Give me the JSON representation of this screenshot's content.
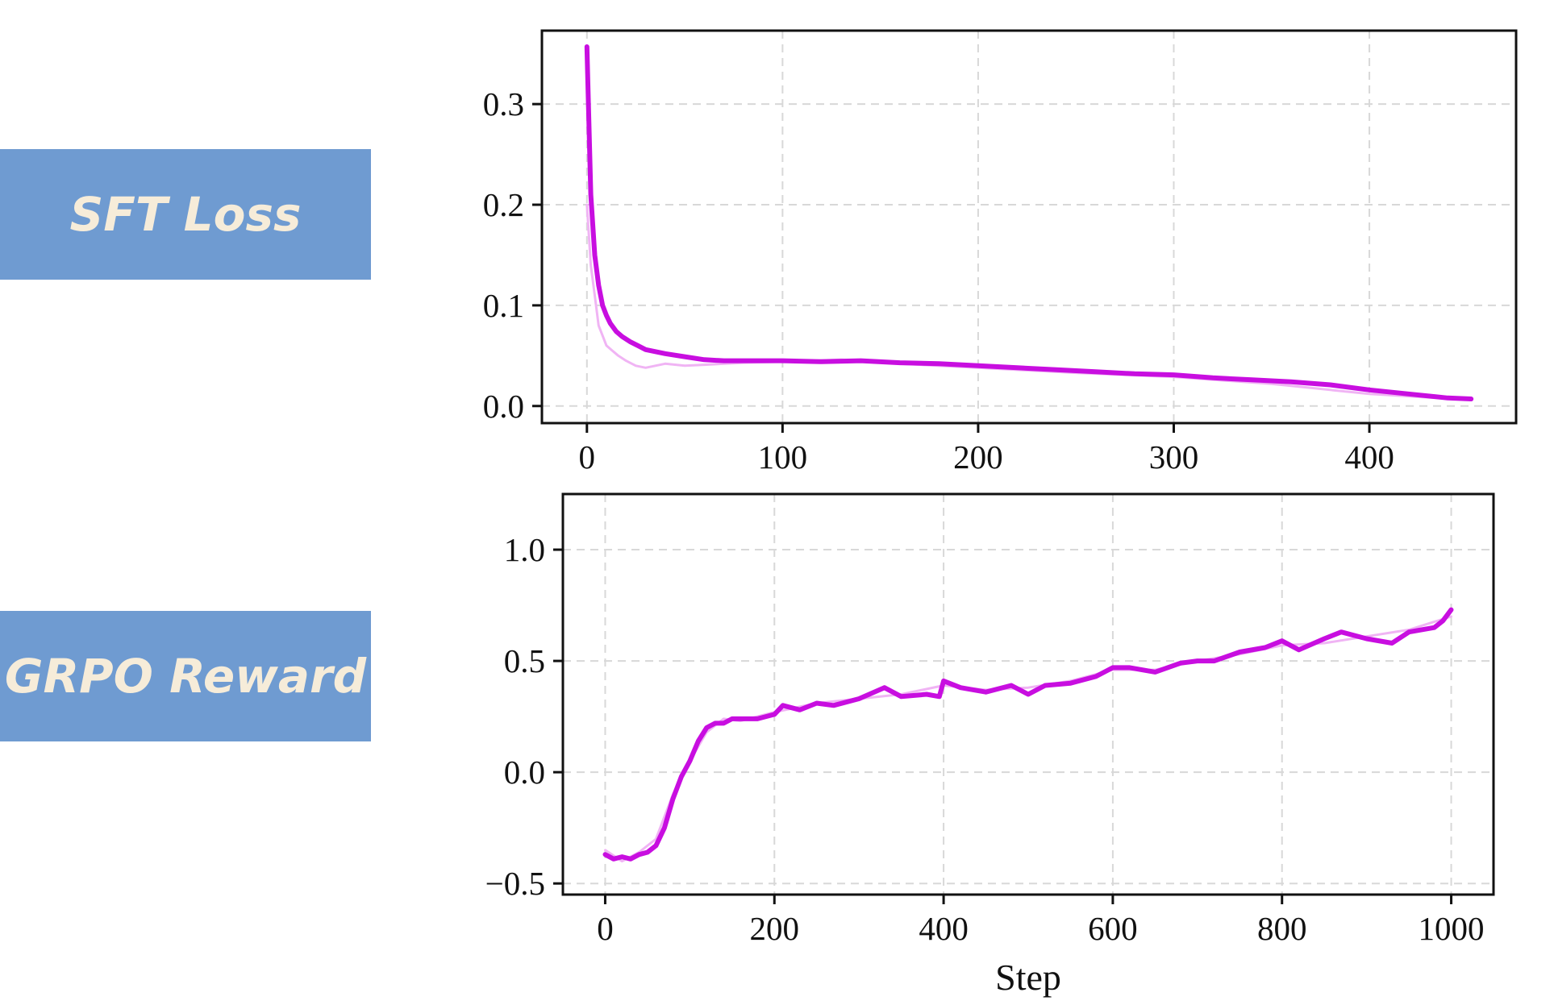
{
  "panels": {
    "sft_label": "SFT Loss",
    "grpo_label": "GRPO Reward"
  },
  "colors": {
    "panel_bg": "#6f9bd1",
    "panel_text": "#f6ecd9",
    "line": "#c80ee0",
    "raw_line": "#f0b4f4",
    "grid": "#d8d8d8"
  },
  "chart_data": [
    {
      "type": "line",
      "title": "",
      "xlabel": "",
      "ylabel": "",
      "xlim": [
        -23,
        475
      ],
      "ylim": [
        -0.017,
        0.373
      ],
      "x_ticks": [
        0,
        100,
        200,
        300,
        400
      ],
      "y_ticks": [
        0.0,
        0.1,
        0.2,
        0.3
      ],
      "y_tick_labels": [
        "0.0",
        "0.1",
        "0.2",
        "0.3"
      ],
      "grid": true,
      "series": [
        {
          "style": "smoothed",
          "x": [
            0,
            2,
            4,
            6,
            8,
            10,
            12,
            15,
            18,
            22,
            26,
            30,
            35,
            40,
            50,
            60,
            70,
            80,
            100,
            120,
            140,
            160,
            180,
            200,
            220,
            240,
            260,
            280,
            300,
            320,
            340,
            360,
            380,
            400,
            420,
            440,
            452
          ],
          "y": [
            0.357,
            0.21,
            0.15,
            0.12,
            0.1,
            0.09,
            0.082,
            0.074,
            0.069,
            0.064,
            0.06,
            0.056,
            0.054,
            0.052,
            0.049,
            0.046,
            0.045,
            0.045,
            0.045,
            0.044,
            0.045,
            0.043,
            0.042,
            0.04,
            0.038,
            0.036,
            0.034,
            0.032,
            0.031,
            0.028,
            0.026,
            0.024,
            0.021,
            0.016,
            0.012,
            0.008,
            0.007
          ]
        },
        {
          "style": "raw",
          "x": [
            0,
            2,
            4,
            6,
            8,
            10,
            13,
            16,
            20,
            25,
            30,
            40,
            50,
            60,
            80,
            100,
            130,
            160,
            200,
            250,
            300,
            350,
            400,
            452
          ],
          "y": [
            0.2,
            0.14,
            0.11,
            0.08,
            0.07,
            0.06,
            0.055,
            0.05,
            0.045,
            0.04,
            0.038,
            0.042,
            0.04,
            0.041,
            0.043,
            0.044,
            0.046,
            0.042,
            0.038,
            0.033,
            0.029,
            0.022,
            0.012,
            0.006
          ]
        }
      ]
    },
    {
      "type": "line",
      "title": "",
      "xlabel": "Step",
      "ylabel": "",
      "xlim": [
        -50,
        1050
      ],
      "ylim": [
        -0.55,
        1.25
      ],
      "x_ticks": [
        0,
        200,
        400,
        600,
        800,
        1000
      ],
      "y_ticks": [
        -0.5,
        0.0,
        0.5,
        1.0
      ],
      "y_tick_labels": [
        "−0.5",
        "0.0",
        "0.5",
        "1.0"
      ],
      "grid": true,
      "series": [
        {
          "style": "smoothed",
          "x": [
            0,
            10,
            20,
            30,
            40,
            50,
            60,
            70,
            80,
            90,
            100,
            110,
            120,
            130,
            140,
            150,
            160,
            180,
            200,
            210,
            230,
            250,
            270,
            300,
            330,
            350,
            380,
            395,
            400,
            420,
            450,
            480,
            500,
            520,
            550,
            580,
            600,
            620,
            650,
            680,
            700,
            720,
            750,
            780,
            800,
            820,
            850,
            870,
            900,
            930,
            950,
            980,
            990,
            1000
          ],
          "y": [
            -0.37,
            -0.39,
            -0.38,
            -0.39,
            -0.37,
            -0.36,
            -0.33,
            -0.25,
            -0.12,
            -0.02,
            0.05,
            0.14,
            0.2,
            0.22,
            0.22,
            0.24,
            0.24,
            0.24,
            0.26,
            0.3,
            0.28,
            0.31,
            0.3,
            0.33,
            0.38,
            0.34,
            0.35,
            0.34,
            0.41,
            0.38,
            0.36,
            0.39,
            0.35,
            0.39,
            0.4,
            0.43,
            0.47,
            0.47,
            0.45,
            0.49,
            0.5,
            0.5,
            0.54,
            0.56,
            0.59,
            0.55,
            0.6,
            0.63,
            0.6,
            0.58,
            0.63,
            0.65,
            0.68,
            0.73
          ]
        },
        {
          "style": "raw",
          "x": [
            0,
            20,
            40,
            60,
            80,
            100,
            120,
            140,
            160,
            200,
            250,
            300,
            350,
            400,
            450,
            500,
            550,
            600,
            650,
            700,
            750,
            800,
            850,
            900,
            950,
            1000
          ],
          "y": [
            -0.35,
            -0.4,
            -0.36,
            -0.3,
            -0.1,
            0.05,
            0.18,
            0.24,
            0.23,
            0.27,
            0.31,
            0.33,
            0.35,
            0.39,
            0.37,
            0.38,
            0.41,
            0.46,
            0.46,
            0.5,
            0.53,
            0.57,
            0.58,
            0.61,
            0.64,
            0.7
          ]
        }
      ]
    }
  ]
}
